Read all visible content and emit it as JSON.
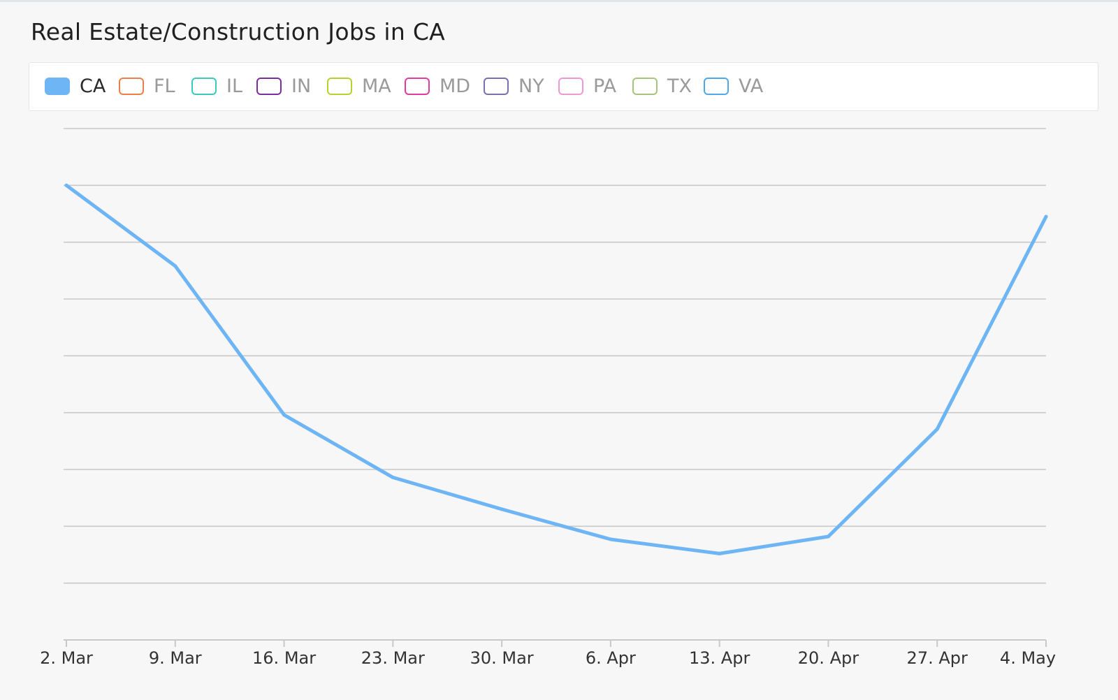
{
  "chart_data": {
    "type": "line",
    "title": "Real Estate/Construction Jobs in CA",
    "xlabel": "",
    "ylabel": "",
    "x": [
      "2. Mar",
      "9. Mar",
      "16. Mar",
      "23. Mar",
      "30. Mar",
      "6. Apr",
      "13. Apr",
      "20. Apr",
      "27. Apr",
      "4. May"
    ],
    "ylim": [
      0,
      9
    ],
    "ygrid_count": 9,
    "grid": true,
    "legend_position": "top",
    "series": [
      {
        "name": "CA",
        "color": "#6eb5f5",
        "visible": true,
        "values": [
          8.0,
          6.58,
          3.96,
          2.86,
          2.3,
          1.77,
          1.52,
          1.82,
          3.71,
          7.45
        ]
      }
    ],
    "legend": [
      {
        "name": "CA",
        "color": "#6eb5f5",
        "active": true
      },
      {
        "name": "FL",
        "color": "#f07e4a",
        "active": false
      },
      {
        "name": "IL",
        "color": "#3cc7c0",
        "active": false
      },
      {
        "name": "IN",
        "color": "#7a2ea0",
        "active": false
      },
      {
        "name": "MA",
        "color": "#b7d12f",
        "active": false
      },
      {
        "name": "MD",
        "color": "#e33aa0",
        "active": false
      },
      {
        "name": "NY",
        "color": "#7b6fb0",
        "active": false
      },
      {
        "name": "PA",
        "color": "#ef99d4",
        "active": false
      },
      {
        "name": "TX",
        "color": "#a7c47e",
        "active": false
      },
      {
        "name": "VA",
        "color": "#4ea8ea",
        "active": false
      }
    ]
  }
}
